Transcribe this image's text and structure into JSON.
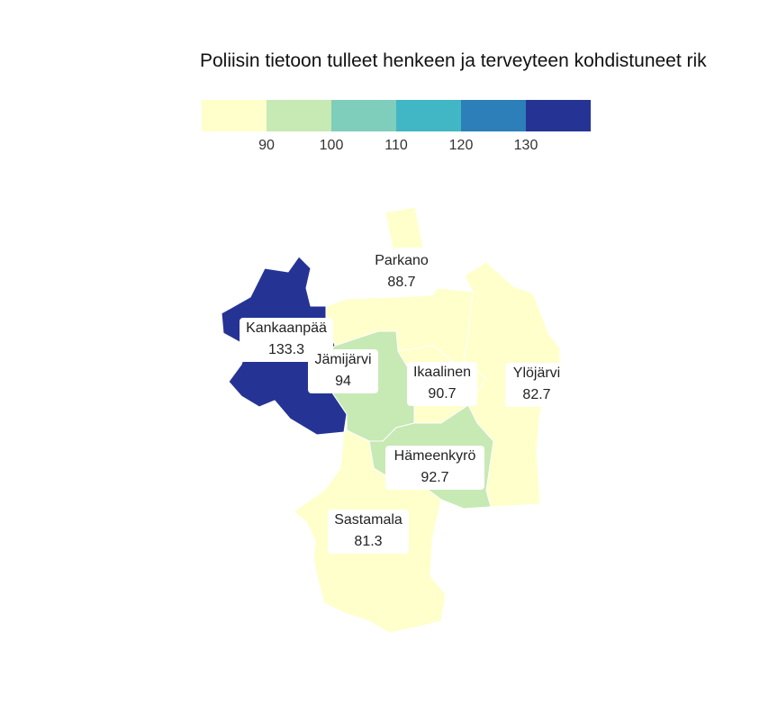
{
  "title": "Poliisin tietoon tulleet henkeen ja terveyteen kohdistuneet rik",
  "legend": {
    "colors": [
      "#ffffcc",
      "#c7e9b4",
      "#7fcdbb",
      "#41b6c4",
      "#2c7fb8",
      "#253494"
    ],
    "ticks": [
      "90",
      "100",
      "110",
      "120",
      "130"
    ]
  },
  "regions": [
    {
      "name": "Parkano",
      "value": "88.7",
      "color": "#ffffcc"
    },
    {
      "name": "Kankaanpää",
      "value": "133.3",
      "color": "#253494"
    },
    {
      "name": "Jämijärvi",
      "value": "94",
      "color": "#c7e9b4"
    },
    {
      "name": "Ikaalinen",
      "value": "90.7",
      "color": "#ffffcc"
    },
    {
      "name": "Ylöjärvi",
      "value": "82.7",
      "color": "#ffffcc"
    },
    {
      "name": "Hämeenkyrö",
      "value": "92.7",
      "color": "#c7e9b4"
    },
    {
      "name": "Sastamala",
      "value": "81.3",
      "color": "#ffffcc"
    }
  ]
}
